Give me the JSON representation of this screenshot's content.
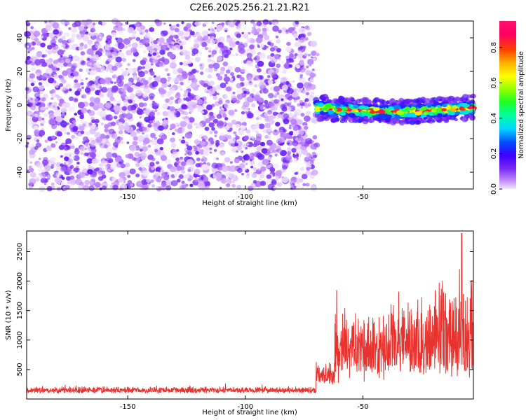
{
  "title": "C2E6.2025.256.21.21.R21",
  "chart_data": [
    {
      "type": "heatmap",
      "xlabel": "Height of straight line (km)",
      "ylabel": "Frequency (Hz)",
      "xlim": [
        -193,
        -3
      ],
      "ylim": [
        -50,
        50
      ],
      "xticks": [
        -150,
        -100,
        -50
      ],
      "yticks": [
        -40,
        -20,
        0,
        20,
        40
      ],
      "colorbar_label": "Normalized spectral amplitude",
      "colorbar_range": [
        0.0,
        0.95
      ],
      "colorbar_ticks": [
        0.0,
        0.2,
        0.4,
        0.6,
        0.8
      ],
      "noise_region_x": [
        -193,
        -70
      ],
      "noise_amplitude": [
        0.0,
        0.15
      ],
      "signal_band": {
        "x_start": -70,
        "x_end": -3,
        "center_freq_hz": -2,
        "half_width_hz": 3,
        "peak_amplitude": 0.85
      }
    },
    {
      "type": "line",
      "xlabel": "Height of straight line (km)",
      "ylabel": "SNR (10 * v/v)",
      "xlim": [
        -193,
        -3
      ],
      "ylim": [
        0,
        2850
      ],
      "xticks": [
        -150,
        -100,
        -50
      ],
      "yticks": [
        500,
        1000,
        1500,
        2000,
        2500
      ],
      "color": "#e8322e",
      "segments": [
        {
          "x": [
            -193,
            -70
          ],
          "baseline": 130,
          "spread": 120
        },
        {
          "x": [
            -70,
            -62
          ],
          "baseline": 350,
          "spread": 500
        },
        {
          "x": [
            -62,
            -40
          ],
          "baseline": 650,
          "spread": 1300
        },
        {
          "x": [
            -40,
            -20
          ],
          "baseline": 750,
          "spread": 1500
        },
        {
          "x": [
            -20,
            -3
          ],
          "baseline": 850,
          "spread": 2000
        }
      ],
      "peak": {
        "x": -8,
        "y": 2810
      }
    }
  ]
}
